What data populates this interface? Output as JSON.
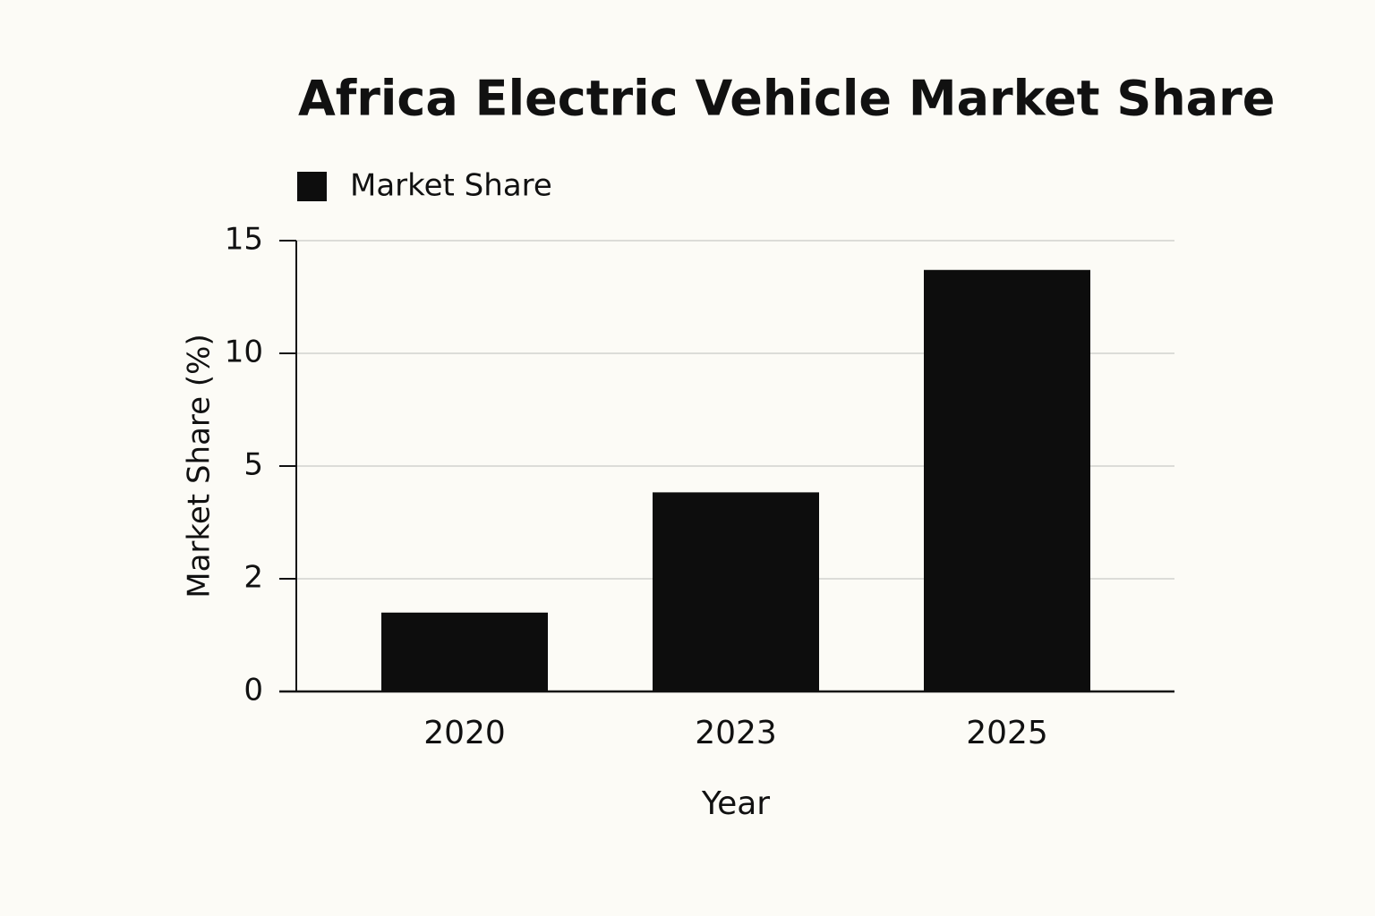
{
  "chart_data": {
    "type": "bar",
    "title": "Africa Electric Vehicle Market Share",
    "x_label": "Year",
    "y_label": "Market Share (%)",
    "categories": [
      "2020",
      "2023",
      "2025"
    ],
    "series": [
      {
        "name": "Market Share",
        "color": "#0d0d0d",
        "values": [
          1.4,
          4.3,
          13.7
        ]
      }
    ],
    "ylim": [
      0,
      15
    ],
    "yticks": [
      0,
      2,
      5,
      10,
      15
    ],
    "grid": true,
    "legend": "top-left"
  }
}
